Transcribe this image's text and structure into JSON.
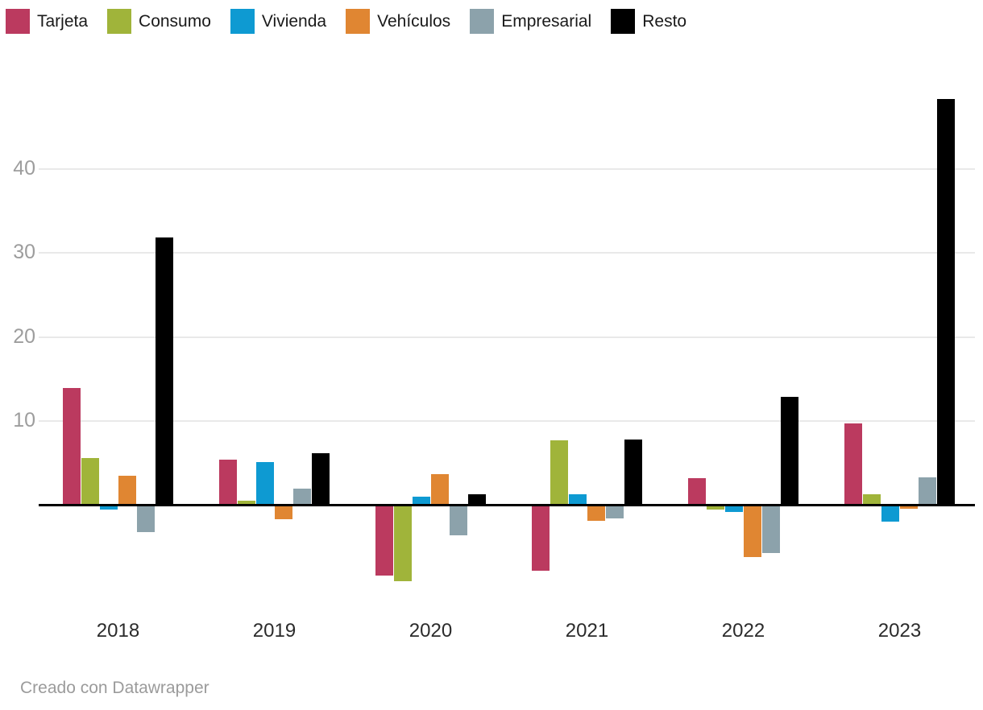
{
  "chart_data": {
    "type": "bar",
    "title": "",
    "xlabel": "",
    "ylabel": "",
    "categories": [
      "2018",
      "2019",
      "2020",
      "2021",
      "2022",
      "2023"
    ],
    "series": [
      {
        "name": "Tarjeta",
        "color": "#bb3a5f",
        "values": [
          13.9,
          5.4,
          -8.4,
          -7.9,
          3.2,
          9.7
        ]
      },
      {
        "name": "Consumo",
        "color": "#a0b43a",
        "values": [
          5.6,
          0.5,
          -9.1,
          7.7,
          -0.6,
          1.2
        ]
      },
      {
        "name": "Vivienda",
        "color": "#0e9ad2",
        "values": [
          -0.6,
          5.1,
          1.0,
          1.2,
          -0.9,
          -2.0
        ]
      },
      {
        "name": "Vehículos",
        "color": "#e08632",
        "values": [
          3.5,
          -1.7,
          3.6,
          -1.9,
          -6.2,
          -0.5
        ]
      },
      {
        "name": "Empresarial",
        "color": "#8ca2ab",
        "values": [
          -3.3,
          1.9,
          -3.6,
          -1.6,
          -5.8,
          3.3
        ]
      },
      {
        "name": "Resto",
        "color": "#000000",
        "values": [
          31.8,
          6.1,
          1.2,
          7.8,
          12.9,
          48.3
        ]
      }
    ],
    "yticks": [
      10,
      20,
      30,
      40
    ],
    "ylim": [
      -12,
      50
    ],
    "grid": "horizontal",
    "legend_position": "top-left"
  },
  "footer": {
    "credit": "Creado con Datawrapper"
  },
  "colors": {
    "background": "#ffffff",
    "gridline": "#e9e9e9",
    "zero_line": "#000000",
    "ytick_label": "#9d9d9d",
    "xtick_label": "#2b2b2b",
    "legend_text": "#1a1a1a",
    "footer_text": "#9b9b9b"
  }
}
